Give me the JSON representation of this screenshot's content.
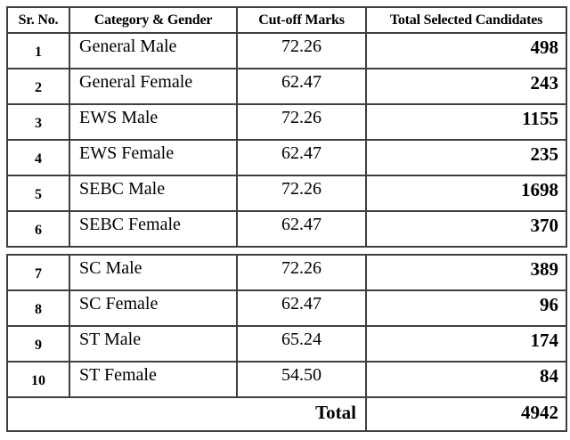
{
  "table": {
    "headers": [
      "Sr. No.",
      "Category & Gender",
      "Cut-off Marks",
      "Total Selected Candidates"
    ],
    "rows": [
      {
        "sr": "1",
        "category": "General Male",
        "cutoff": "72.26",
        "selected": "498"
      },
      {
        "sr": "2",
        "category": "General Female",
        "cutoff": "62.47",
        "selected": "243"
      },
      {
        "sr": "3",
        "category": "EWS Male",
        "cutoff": "72.26",
        "selected": "1155"
      },
      {
        "sr": "4",
        "category": "EWS Female",
        "cutoff": "62.47",
        "selected": "235"
      },
      {
        "sr": "5",
        "category": "SEBC Male",
        "cutoff": "72.26",
        "selected": "1698"
      },
      {
        "sr": "6",
        "category": "SEBC Female",
        "cutoff": "62.47",
        "selected": "370"
      },
      {
        "sr": "7",
        "category": "SC Male",
        "cutoff": "72.26",
        "selected": "389"
      },
      {
        "sr": "8",
        "category": "SC Female",
        "cutoff": "62.47",
        "selected": "96"
      },
      {
        "sr": "9",
        "category": "ST Male",
        "cutoff": "65.24",
        "selected": "174"
      },
      {
        "sr": "10",
        "category": "ST Female",
        "cutoff": "54.50",
        "selected": "84"
      }
    ],
    "footer": {
      "label": "Total",
      "value": "4942"
    }
  },
  "colors": {
    "border": "#3f3f3f",
    "text": "#000000",
    "background": "#ffffff"
  }
}
